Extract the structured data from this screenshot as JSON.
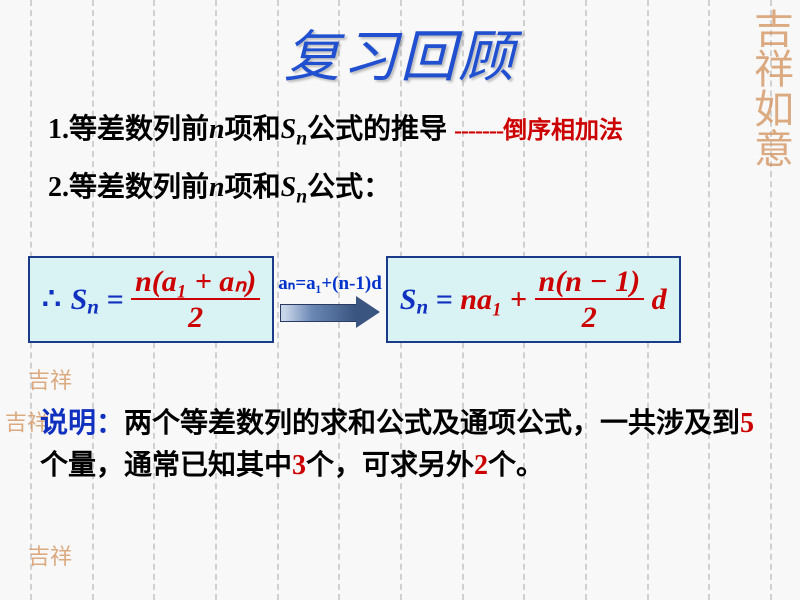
{
  "slide": {
    "title": "复习回顾",
    "background_color": "#f8f8f8",
    "dash_line_color": "#d0d0d0",
    "dash_line_count": 13,
    "seal_color": "#d2905a",
    "seal_text_tr": "吉祥如意",
    "seal_text_small": "吉祥"
  },
  "line1": {
    "prefix": "1.等差数列前",
    "n": "n",
    "mid": "项和",
    "S": "S",
    "sub": "n",
    "suffix": "公式的推导 ",
    "dashes": "-------",
    "method": "倒序相加法"
  },
  "line2": {
    "prefix": "2.等差数列前",
    "n": "n",
    "mid": "项和",
    "S": "S",
    "sub": "n",
    "suffix": "公式："
  },
  "formula1": {
    "therefore": "∴",
    "lhs_S": "S",
    "lhs_sub": "n",
    "eq": " = ",
    "num": "n(a₁ + aₙ)",
    "den": "2",
    "box_bg": "#d9f2f4",
    "box_border": "#1a3a8a",
    "color_red": "#cc0000",
    "color_blue": "#1030c0"
  },
  "arrow": {
    "label": "aₙ=a₁+(n-1)d",
    "label_color": "#0033cc",
    "gradient_from": "#c8d6e8",
    "gradient_to": "#3a5580"
  },
  "formula2": {
    "lhs_S": "S",
    "lhs_sub": "n",
    "eq": " = ",
    "term1": "na₁ + ",
    "num": "n(n − 1)",
    "den": "2",
    "tail": " d"
  },
  "explain": {
    "label": "说明：",
    "part1": "两个等差数列的求和公式及通项公式，一共涉及到",
    "q1": "5",
    "part2": "个量，通常已知其中",
    "q2": "3",
    "part3": "个，可求另外",
    "q3": "2",
    "part4": "个。",
    "label_color": "#1030c0",
    "num_color": "#cc0000"
  }
}
